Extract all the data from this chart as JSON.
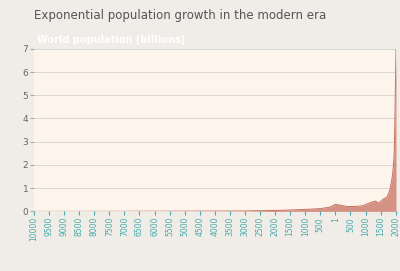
{
  "title": "Exponential population growth in the modern era",
  "legend_label": "World population (billions)",
  "legend_bg": "#1a7a30",
  "legend_text_color": "#ffffff",
  "fig_bg": "#f0ede8",
  "plot_bg": "#fdf5ec",
  "line_color": "#c97060",
  "fill_color": "#cc7a6a",
  "fill_alpha": 0.8,
  "ylim": [
    0,
    7
  ],
  "yticks": [
    0,
    1,
    2,
    3,
    4,
    5,
    6,
    7
  ],
  "title_fontsize": 8.5,
  "tick_fontsize": 5.5,
  "title_color": "#555555",
  "tick_color": "#666666",
  "xtick_color": "#44aaaa",
  "grid_color": "#cccccc",
  "xstart": -10000,
  "xend": 2011,
  "xtick_step": 500
}
